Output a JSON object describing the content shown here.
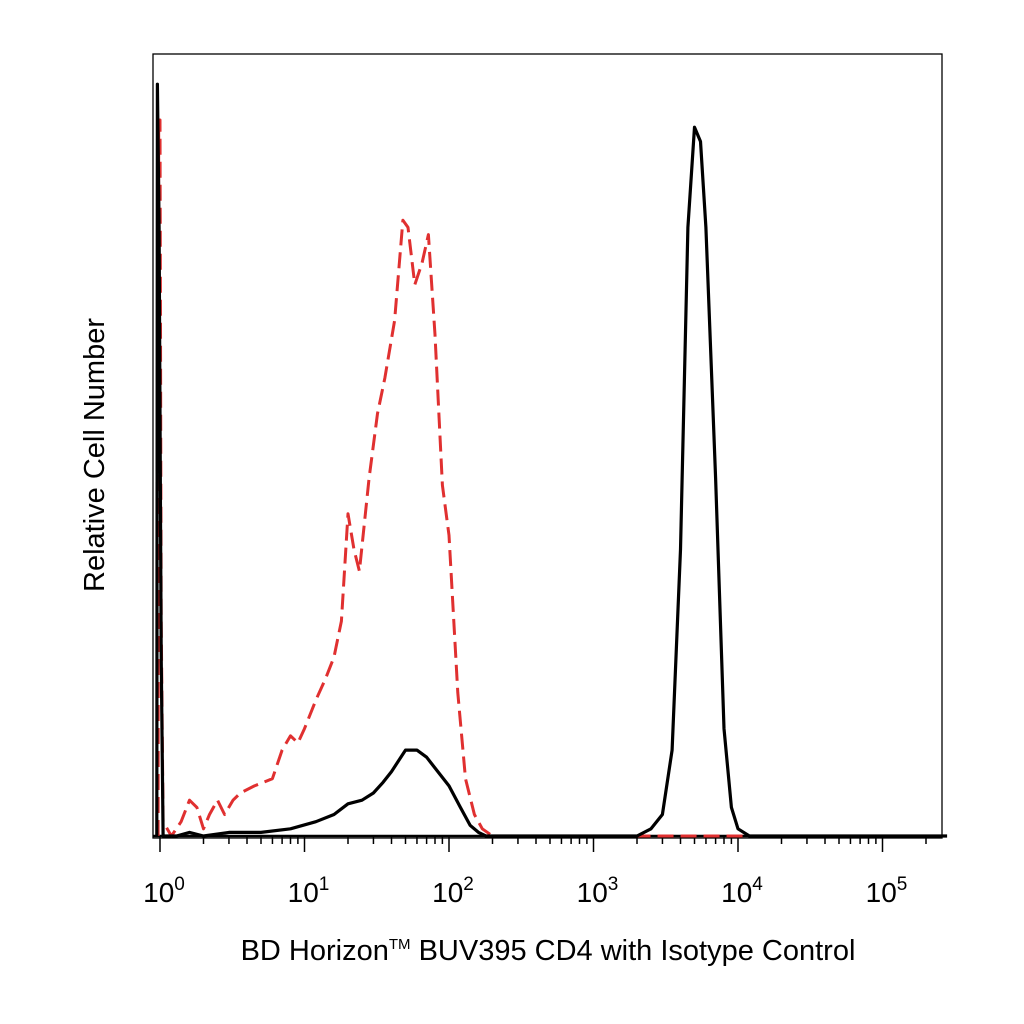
{
  "chart_data": {
    "type": "area",
    "title": "",
    "xlabel": "BD Horizon",
    "xlabel_trademark": "TM",
    "xlabel_suffix": " BUV395 CD4 with Isotype Control",
    "ylabel": "Relative Cell Number",
    "x_scale": "log",
    "xlim": [
      0.95,
      280000
    ],
    "ylim": [
      0,
      1.05
    ],
    "x_tick_labels": [
      {
        "base": "10",
        "exp": "0",
        "value": 1
      },
      {
        "base": "10",
        "exp": "1",
        "value": 10
      },
      {
        "base": "10",
        "exp": "2",
        "value": 100
      },
      {
        "base": "10",
        "exp": "3",
        "value": 1000
      },
      {
        "base": "10",
        "exp": "4",
        "value": 10000
      },
      {
        "base": "10",
        "exp": "5",
        "value": 100000
      }
    ],
    "grid": false,
    "legend": "none",
    "series": [
      {
        "color": "#e03030",
        "style": "dashed",
        "points": [
          [
            0.97,
            0.0
          ],
          [
            0.98,
            1.0
          ],
          [
            1.0,
            1.0
          ],
          [
            1.02,
            0.3
          ],
          [
            1.05,
            0.02
          ],
          [
            1.2,
            0.0
          ],
          [
            1.4,
            0.02
          ],
          [
            1.6,
            0.05
          ],
          [
            1.8,
            0.04
          ],
          [
            2.0,
            0.01
          ],
          [
            2.2,
            0.03
          ],
          [
            2.5,
            0.05
          ],
          [
            2.8,
            0.03
          ],
          [
            3.2,
            0.05
          ],
          [
            3.6,
            0.06
          ],
          [
            4.5,
            0.07
          ],
          [
            6.0,
            0.08
          ],
          [
            7.0,
            0.12
          ],
          [
            8.0,
            0.14
          ],
          [
            9.0,
            0.13
          ],
          [
            10.0,
            0.15
          ],
          [
            12.0,
            0.19
          ],
          [
            14.0,
            0.22
          ],
          [
            16.0,
            0.25
          ],
          [
            18.0,
            0.3
          ],
          [
            20.0,
            0.45
          ],
          [
            22.0,
            0.4
          ],
          [
            24.0,
            0.37
          ],
          [
            28.0,
            0.5
          ],
          [
            32.0,
            0.59
          ],
          [
            36.0,
            0.64
          ],
          [
            42.0,
            0.72
          ],
          [
            48.0,
            0.86
          ],
          [
            52.0,
            0.85
          ],
          [
            58.0,
            0.77
          ],
          [
            65.0,
            0.8
          ],
          [
            72.0,
            0.84
          ],
          [
            80.0,
            0.7
          ],
          [
            90.0,
            0.49
          ],
          [
            100.0,
            0.42
          ],
          [
            115.0,
            0.2
          ],
          [
            130.0,
            0.08
          ],
          [
            150.0,
            0.03
          ],
          [
            170.0,
            0.01
          ],
          [
            200.0,
            0.0
          ],
          [
            2000.0,
            0.0
          ],
          [
            12000.0,
            0.0
          ]
        ]
      },
      {
        "color": "#000000",
        "style": "solid",
        "points": [
          [
            0.95,
            0.0
          ],
          [
            0.96,
            1.05
          ],
          [
            0.985,
            0.85
          ],
          [
            1.02,
            0.25
          ],
          [
            1.05,
            0.0
          ],
          [
            1.3,
            0.0
          ],
          [
            1.6,
            0.005
          ],
          [
            2.0,
            0.0
          ],
          [
            3.0,
            0.005
          ],
          [
            5.0,
            0.005
          ],
          [
            8.0,
            0.01
          ],
          [
            12.0,
            0.02
          ],
          [
            16.0,
            0.03
          ],
          [
            20.0,
            0.045
          ],
          [
            25.0,
            0.05
          ],
          [
            30.0,
            0.06
          ],
          [
            35.0,
            0.075
          ],
          [
            40.0,
            0.09
          ],
          [
            50.0,
            0.12
          ],
          [
            60.0,
            0.12
          ],
          [
            70.0,
            0.11
          ],
          [
            80.0,
            0.095
          ],
          [
            100.0,
            0.07
          ],
          [
            120.0,
            0.04
          ],
          [
            140.0,
            0.015
          ],
          [
            160.0,
            0.005
          ],
          [
            180.0,
            0.0
          ],
          [
            2000.0,
            0.0
          ],
          [
            2500.0,
            0.01
          ],
          [
            3000.0,
            0.03
          ],
          [
            3500.0,
            0.12
          ],
          [
            4000.0,
            0.4
          ],
          [
            4500.0,
            0.85
          ],
          [
            5000.0,
            0.99
          ],
          [
            5500.0,
            0.97
          ],
          [
            6000.0,
            0.85
          ],
          [
            7000.0,
            0.5
          ],
          [
            8000.0,
            0.15
          ],
          [
            9000.0,
            0.04
          ],
          [
            10000.0,
            0.01
          ],
          [
            12000.0,
            0.0
          ],
          [
            280000.0,
            0.0
          ]
        ]
      }
    ]
  }
}
